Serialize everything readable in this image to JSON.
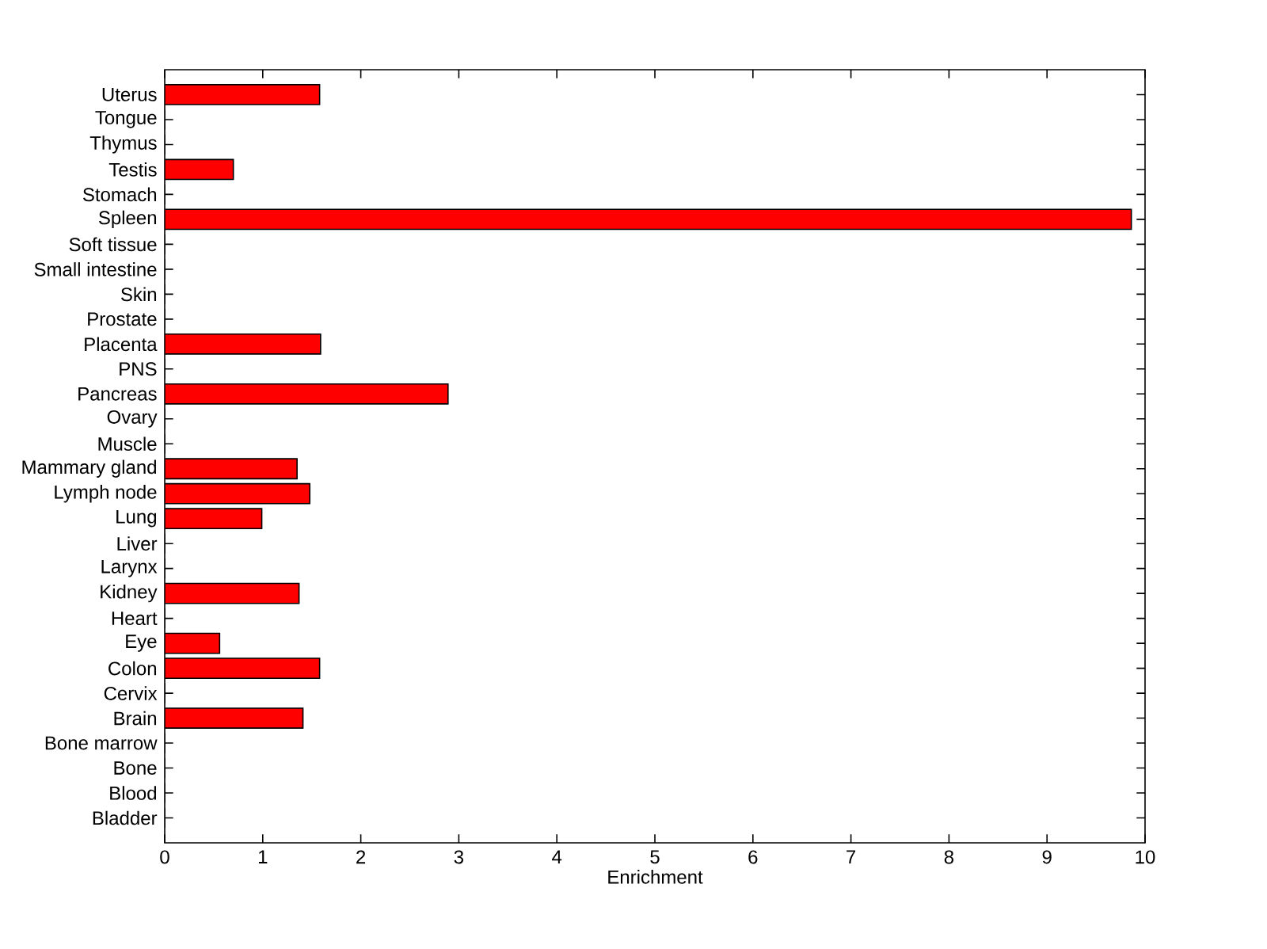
{
  "chart_data": {
    "type": "bar",
    "orientation": "horizontal",
    "xlabel": "Enrichment",
    "categories": [
      "Uterus",
      "Tongue",
      "Thymus",
      "Testis",
      "Stomach",
      "Spleen",
      "Soft tissue",
      "Small intestine",
      "Skin",
      "Prostate",
      "Placenta",
      "PNS",
      "Pancreas",
      "Ovary",
      "Muscle",
      "Mammary gland",
      "Lymph node",
      "Lung",
      "Liver",
      "Larynx",
      "Kidney",
      "Heart",
      "Eye",
      "Colon",
      "Cervix",
      "Brain",
      "Bone marrow",
      "Bone",
      "Blood",
      "Bladder"
    ],
    "values": [
      1.58,
      0,
      0,
      0.7,
      0,
      9.86,
      0,
      0,
      0,
      0,
      1.59,
      0,
      2.89,
      0,
      0,
      1.35,
      1.48,
      0.99,
      0,
      0,
      1.37,
      0,
      0.56,
      1.58,
      0,
      1.41,
      0,
      0,
      0,
      0
    ],
    "color": "#ff0000",
    "xlim": [
      0,
      10
    ],
    "xticks": [
      0,
      1,
      2,
      3,
      4,
      5,
      6,
      7,
      8,
      9,
      10
    ],
    "grid": false
  }
}
